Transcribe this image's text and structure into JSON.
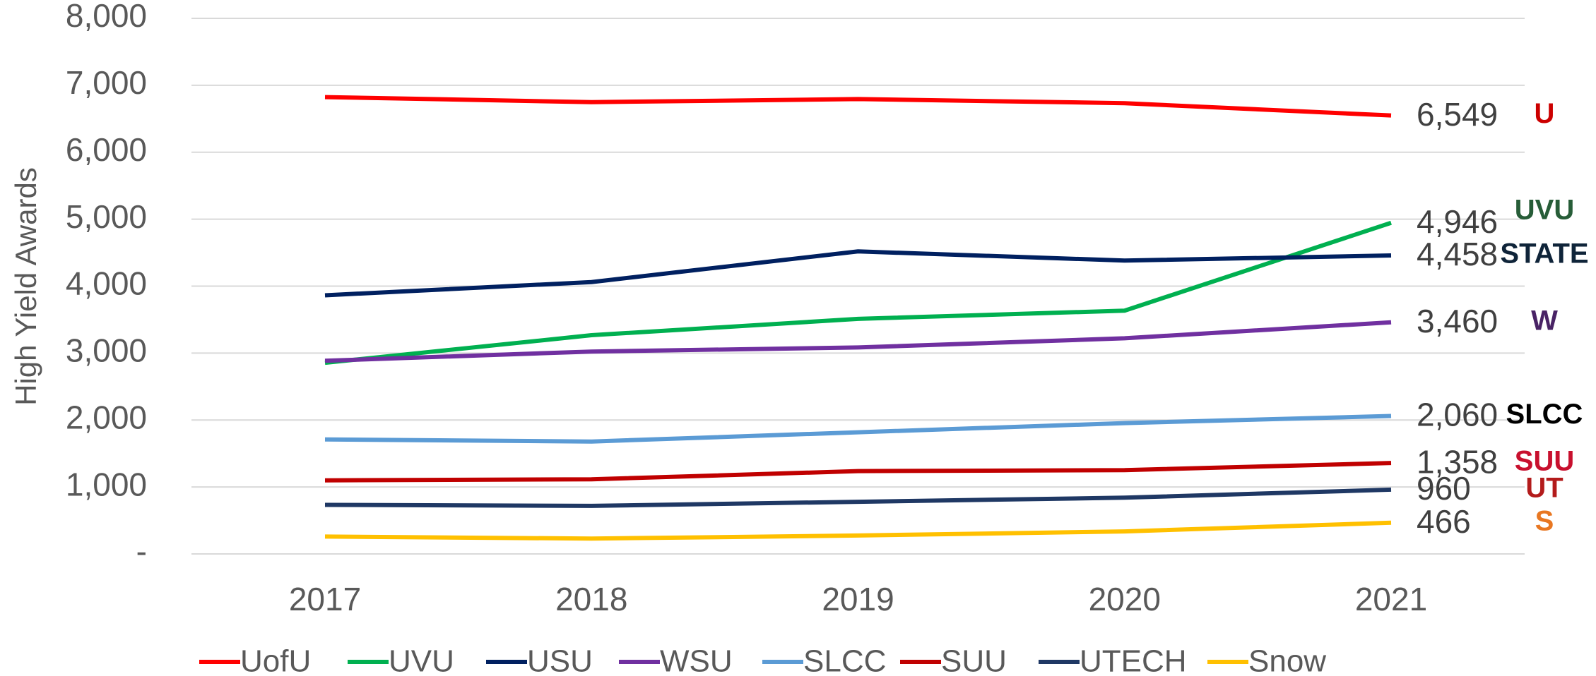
{
  "chart_data": {
    "type": "line",
    "y_label": "High Yield Awards",
    "categories": [
      "2017",
      "2018",
      "2019",
      "2020",
      "2021"
    ],
    "ylim": [
      0,
      8000
    ],
    "yticks": [
      {
        "value": 0,
        "label": "-"
      },
      {
        "value": 1000,
        "label": "1,000"
      },
      {
        "value": 2000,
        "label": "2,000"
      },
      {
        "value": 3000,
        "label": "3,000"
      },
      {
        "value": 4000,
        "label": "4,000"
      },
      {
        "value": 5000,
        "label": "5,000"
      },
      {
        "value": 6000,
        "label": "6,000"
      },
      {
        "value": 7000,
        "label": "7,000"
      },
      {
        "value": 8000,
        "label": "8,000"
      }
    ],
    "grid": true,
    "legend": "bottom",
    "series": [
      {
        "name": "UofU",
        "color": "#ff0000",
        "values": [
          6824,
          6748,
          6794,
          6733,
          6549
        ],
        "value_labels": [
          null,
          null,
          null,
          null,
          "6,549"
        ],
        "logo": "U",
        "logo_color": "#cc0000"
      },
      {
        "name": "UVU",
        "color": "#00b050",
        "values": [
          2855,
          3267,
          3511,
          3634,
          4946
        ],
        "value_labels": [
          null,
          null,
          null,
          null,
          "4,946"
        ],
        "logo": "UVU",
        "logo_color": "#275d38"
      },
      {
        "name": "USU",
        "color": "#002060",
        "values": [
          3863,
          4061,
          4519,
          4382,
          4458
        ],
        "value_labels": [
          null,
          null,
          null,
          null,
          "4,458"
        ],
        "logo": "STATE",
        "logo_color": "#0f2439"
      },
      {
        "name": "WSU",
        "color": "#7030a0",
        "values": [
          2885,
          3023,
          3084,
          3221,
          3460
        ],
        "value_labels": [
          null,
          null,
          null,
          null,
          "3,460"
        ],
        "logo": "W",
        "logo_color": "#492365"
      },
      {
        "name": "SLCC",
        "color": "#5b9bd5",
        "values": [
          1710,
          1679,
          1817,
          1954,
          2060
        ],
        "value_labels": [
          null,
          null,
          null,
          null,
          "2,060"
        ],
        "logo": "SLCC",
        "logo_color": "#000000"
      },
      {
        "name": "SUU",
        "color": "#c00000",
        "values": [
          1099,
          1115,
          1237,
          1252,
          1358
        ],
        "value_labels": [
          null,
          null,
          null,
          null,
          "1,358"
        ],
        "logo": "SUU",
        "logo_color": "#c8102e"
      },
      {
        "name": "UTECH",
        "color": "#1f3864",
        "values": [
          733,
          718,
          779,
          840,
          960
        ],
        "value_labels": [
          null,
          null,
          null,
          null,
          "960"
        ],
        "logo": "UT",
        "logo_color": "#b31b1b"
      },
      {
        "name": "Snow",
        "color": "#ffc000",
        "values": [
          260,
          229,
          275,
          336,
          466
        ],
        "value_labels": [
          null,
          null,
          null,
          null,
          "466"
        ],
        "logo": "S",
        "logo_color": "#e87722"
      }
    ]
  }
}
